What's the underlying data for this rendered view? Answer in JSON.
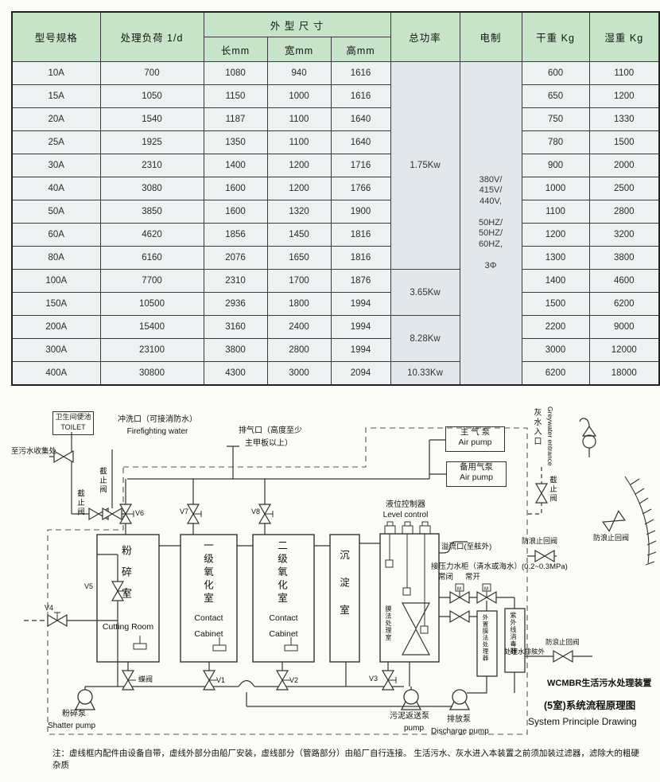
{
  "table": {
    "headers": {
      "model": "型号规格",
      "load": "处理负荷 1/d",
      "dims": "外 型 尺 寸",
      "len": "长mm",
      "wid": "宽mm",
      "hgt": "高mm",
      "power": "总功率",
      "electric": "电制",
      "dry": "干重 Kg",
      "wet": "湿重 Kg"
    },
    "rows": [
      [
        "10A",
        "700",
        "1080",
        "940",
        "1616",
        "600",
        "1100"
      ],
      [
        "15A",
        "1050",
        "1150",
        "1000",
        "1616",
        "650",
        "1200"
      ],
      [
        "20A",
        "1540",
        "1187",
        "1100",
        "1640",
        "750",
        "1330"
      ],
      [
        "25A",
        "1925",
        "1350",
        "1100",
        "1640",
        "780",
        "1500"
      ],
      [
        "30A",
        "2310",
        "1400",
        "1200",
        "1716",
        "900",
        "2000"
      ],
      [
        "40A",
        "3080",
        "1600",
        "1200",
        "1766",
        "1000",
        "2500"
      ],
      [
        "50A",
        "3850",
        "1600",
        "1320",
        "1900",
        "1100",
        "2800"
      ],
      [
        "60A",
        "4620",
        "1856",
        "1450",
        "1816",
        "1200",
        "3200"
      ],
      [
        "80A",
        "6160",
        "2076",
        "1650",
        "1816",
        "1300",
        "3800"
      ],
      [
        "100A",
        "7700",
        "2310",
        "1700",
        "1876",
        "1400",
        "4600"
      ],
      [
        "150A",
        "10500",
        "2936",
        "1800",
        "1994",
        "1500",
        "6200"
      ],
      [
        "200A",
        "15400",
        "3160",
        "2400",
        "1994",
        "2200",
        "9000"
      ],
      [
        "300A",
        "23100",
        "3800",
        "2800",
        "1994",
        "3000",
        "12000"
      ],
      [
        "400A",
        "30800",
        "4300",
        "3000",
        "2094",
        "6200",
        "18000"
      ]
    ],
    "power_groups": [
      {
        "label": "1.75Kw",
        "span": 9
      },
      {
        "label": "3.65Kw",
        "span": 2
      },
      {
        "label": "8.28Kw",
        "span": 2
      },
      {
        "label": "10.33Kw",
        "span": 1
      }
    ],
    "electric_lines": [
      "380V/",
      "415V/",
      "440V,",
      "",
      "50HZ/",
      "50HZ/",
      "60HZ,",
      "",
      "3Φ"
    ]
  },
  "colors": {
    "header_green": "#c7e3c8",
    "cell_gray": "#e1e7ea",
    "cell_light": "#eef1f2"
  },
  "d": {
    "toilet_zh": "卫生间便池",
    "toilet_en": "TOILET",
    "flush_zh": "冲洗口（可接消防水）",
    "flush_en": "Firefighting water",
    "vent_l1": "排气口（高度至少",
    "vent_l2": "主甲板以上）",
    "sewage": "至污水收集处",
    "stop_valve": "截止阀",
    "v1": "V1",
    "v2": "V2",
    "v3": "V3",
    "v4": "V4",
    "v5": "V5",
    "v6": "V6",
    "v7": "V7",
    "v8": "V8",
    "butterfly": "蝶阀",
    "main_air_zh": "主 气 泵",
    "main_air_en": "Air pump",
    "backup_air_zh": "备用气泵",
    "backup_air_en": "Air pump",
    "grey_zh": "灰水入口",
    "grey_en": "Greywater entrance",
    "level_zh": "液位控制器",
    "level_en": "Level control",
    "t1_zh": "粉碎室",
    "t1_en": "Cutting Room",
    "t2_zh": "一级氧化室",
    "t2_en1": "Contact",
    "t2_en2": "Cabinet",
    "t3_zh": "二级氧化室",
    "t4_zh": "沉淀室",
    "membrane": "膜法处理室",
    "overflow": "溢流口(至舷外)",
    "pressure": "接压力水柜（清水或海水）(0.2~0.3MPa)",
    "nc": "常闭",
    "no_": "常开",
    "m": "M",
    "ext_membrane": "外置膜法处理器",
    "uv": "紫外线消毒器",
    "anti_wave": "防浪止回阀",
    "treated": "处理水排舷外",
    "shatter_zh": "粉碎泵",
    "shatter_en": "Shatter pump",
    "sludge_zh": "污泥返送泵",
    "sludge_en": "pump",
    "discharge_zh": "排放泵",
    "discharge_en": "Discharge pump",
    "title1": "WCMBR生活污水处理装置",
    "title2": "(5室)系统流程原理图",
    "title3": "System Principle Drawing",
    "note": "注：虚线框内配件由设备自带，虚线外部分由船厂安装，虚线部分（管路部分）由船厂自行连接。 生活污水、灰水进入本装置之前须加装过滤器，滤除大的粗硬杂质"
  }
}
